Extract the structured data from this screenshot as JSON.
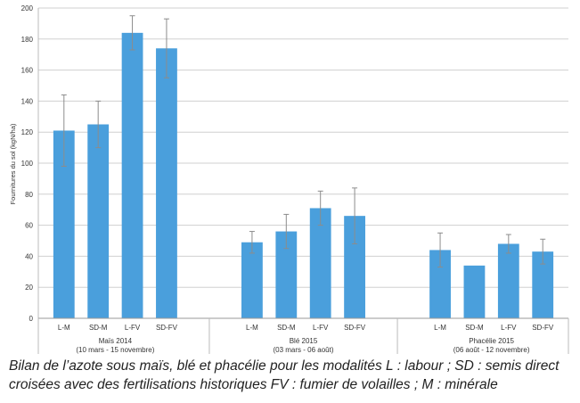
{
  "chart_data": {
    "type": "bar",
    "ylabel": "Fournitures du sol (kgN/ha)",
    "ylim": [
      0,
      200
    ],
    "yticks": [
      0,
      20,
      40,
      60,
      80,
      100,
      120,
      140,
      160,
      180,
      200
    ],
    "grid": true,
    "bar_color": "#4a9fdc",
    "groups": [
      {
        "name": "Maïs 2014",
        "period": "(10 mars - 15 novembre)",
        "categories": [
          "L-M",
          "SD-M",
          "L-FV",
          "SD-FV"
        ],
        "values": [
          121,
          125,
          184,
          174
        ],
        "errors": [
          23,
          15,
          11,
          19
        ]
      },
      {
        "name": "Blé 2015",
        "period": "(03 mars - 06 août)",
        "categories": [
          "L-M",
          "SD-M",
          "L-FV",
          "SD-FV"
        ],
        "values": [
          49,
          56,
          71,
          66
        ],
        "errors": [
          7,
          11,
          11,
          18
        ]
      },
      {
        "name": "Phacélie 2015",
        "period": "(06 août - 12 novembre)",
        "categories": [
          "L-M",
          "SD-M",
          "L-FV",
          "SD-FV"
        ],
        "values": [
          44,
          34,
          48,
          43
        ],
        "errors": [
          11,
          0,
          6,
          8
        ]
      }
    ]
  },
  "caption": "Bilan de l’azote sous maïs, blé et phacélie pour les modalités  L : labour ; SD : semis direct croisées avec des fertilisations historiques FV : fumier de volailles ; M : minérale"
}
